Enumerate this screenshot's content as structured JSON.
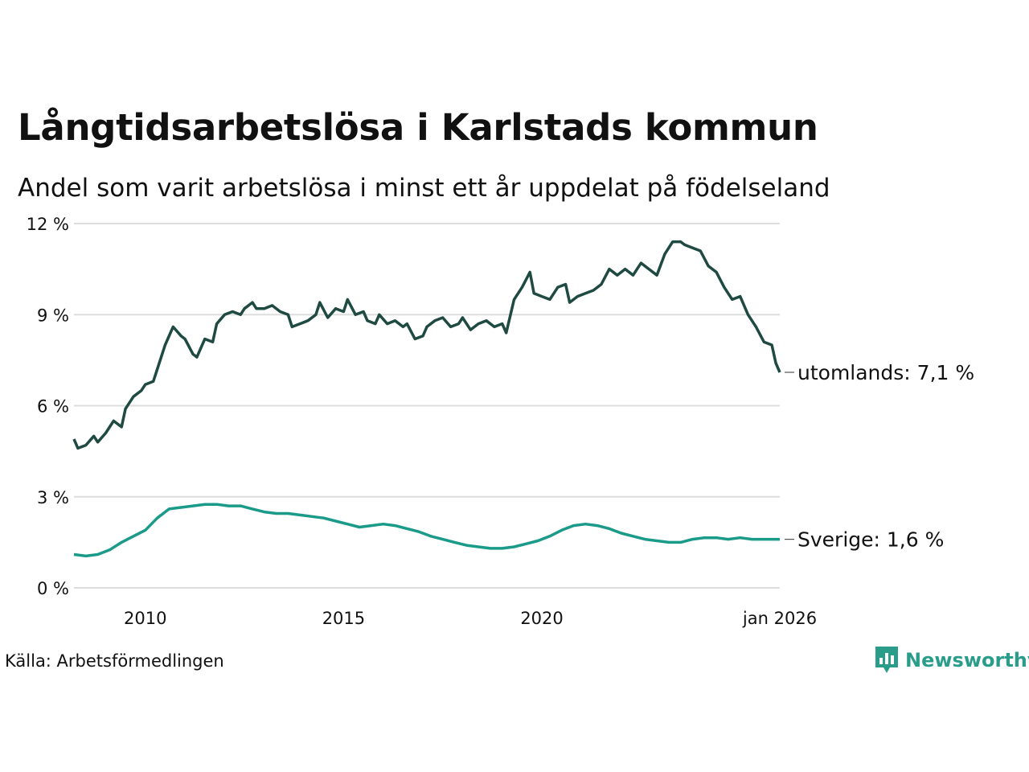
{
  "title": "Långtidsarbetslösa i Karlstads kommun",
  "subtitle": "Andel som varit arbetslösa i minst ett år uppdelat på födelseland",
  "source": "Källa: Arbetsförmedlingen",
  "logo": {
    "text": "Newsworthy",
    "icon": "bar-chart-icon",
    "color": "#2a9d8a"
  },
  "colors": {
    "utomlands": "#1f4a42",
    "sverige": "#1a9a88",
    "grid": "#dddddd"
  },
  "chart_data": {
    "type": "line",
    "title": "Långtidsarbetslösa i Karlstads kommun",
    "ylim": [
      0,
      12
    ],
    "xlim": [
      2008.2,
      2026.0
    ],
    "y_ticks": [
      {
        "value": 0,
        "label": "0 %"
      },
      {
        "value": 3,
        "label": "3 %"
      },
      {
        "value": 6,
        "label": "6 %"
      },
      {
        "value": 9,
        "label": "9 %"
      },
      {
        "value": 12,
        "label": "12 %"
      }
    ],
    "x_ticks": [
      {
        "value": 2010,
        "label": "2010"
      },
      {
        "value": 2015,
        "label": "2015"
      },
      {
        "value": 2020,
        "label": "2020"
      },
      {
        "value": 2026.0,
        "label": "jan 2026"
      }
    ],
    "grid": true,
    "series": [
      {
        "name": "utomlands",
        "end_label": "utomlands: 7,1 %",
        "color": "#1f4a42",
        "points": [
          [
            2008.2,
            4.9
          ],
          [
            2008.3,
            4.6
          ],
          [
            2008.5,
            4.7
          ],
          [
            2008.7,
            5.0
          ],
          [
            2008.8,
            4.8
          ],
          [
            2009.0,
            5.1
          ],
          [
            2009.2,
            5.5
          ],
          [
            2009.4,
            5.3
          ],
          [
            2009.5,
            5.9
          ],
          [
            2009.7,
            6.3
          ],
          [
            2009.9,
            6.5
          ],
          [
            2010.0,
            6.7
          ],
          [
            2010.2,
            6.8
          ],
          [
            2010.4,
            7.6
          ],
          [
            2010.5,
            8.0
          ],
          [
            2010.7,
            8.6
          ],
          [
            2010.9,
            8.3
          ],
          [
            2011.0,
            8.2
          ],
          [
            2011.2,
            7.7
          ],
          [
            2011.3,
            7.6
          ],
          [
            2011.5,
            8.2
          ],
          [
            2011.7,
            8.1
          ],
          [
            2011.8,
            8.7
          ],
          [
            2012.0,
            9.0
          ],
          [
            2012.2,
            9.1
          ],
          [
            2012.4,
            9.0
          ],
          [
            2012.5,
            9.2
          ],
          [
            2012.7,
            9.4
          ],
          [
            2012.8,
            9.2
          ],
          [
            2013.0,
            9.2
          ],
          [
            2013.2,
            9.3
          ],
          [
            2013.4,
            9.1
          ],
          [
            2013.6,
            9.0
          ],
          [
            2013.7,
            8.6
          ],
          [
            2013.9,
            8.7
          ],
          [
            2014.1,
            8.8
          ],
          [
            2014.3,
            9.0
          ],
          [
            2014.4,
            9.4
          ],
          [
            2014.6,
            8.9
          ],
          [
            2014.8,
            9.2
          ],
          [
            2015.0,
            9.1
          ],
          [
            2015.1,
            9.5
          ],
          [
            2015.3,
            9.0
          ],
          [
            2015.5,
            9.1
          ],
          [
            2015.6,
            8.8
          ],
          [
            2015.8,
            8.7
          ],
          [
            2015.9,
            9.0
          ],
          [
            2016.1,
            8.7
          ],
          [
            2016.3,
            8.8
          ],
          [
            2016.5,
            8.6
          ],
          [
            2016.6,
            8.7
          ],
          [
            2016.8,
            8.2
          ],
          [
            2017.0,
            8.3
          ],
          [
            2017.1,
            8.6
          ],
          [
            2017.3,
            8.8
          ],
          [
            2017.5,
            8.9
          ],
          [
            2017.7,
            8.6
          ],
          [
            2017.9,
            8.7
          ],
          [
            2018.0,
            8.9
          ],
          [
            2018.2,
            8.5
          ],
          [
            2018.4,
            8.7
          ],
          [
            2018.6,
            8.8
          ],
          [
            2018.8,
            8.6
          ],
          [
            2019.0,
            8.7
          ],
          [
            2019.1,
            8.4
          ],
          [
            2019.3,
            9.5
          ],
          [
            2019.5,
            9.9
          ],
          [
            2019.7,
            10.4
          ],
          [
            2019.8,
            9.7
          ],
          [
            2020.0,
            9.6
          ],
          [
            2020.2,
            9.5
          ],
          [
            2020.4,
            9.9
          ],
          [
            2020.6,
            10.0
          ],
          [
            2020.7,
            9.4
          ],
          [
            2020.9,
            9.6
          ],
          [
            2021.1,
            9.7
          ],
          [
            2021.3,
            9.8
          ],
          [
            2021.5,
            10.0
          ],
          [
            2021.7,
            10.5
          ],
          [
            2021.9,
            10.3
          ],
          [
            2022.1,
            10.5
          ],
          [
            2022.3,
            10.3
          ],
          [
            2022.5,
            10.7
          ],
          [
            2022.7,
            10.5
          ],
          [
            2022.9,
            10.3
          ],
          [
            2023.1,
            11.0
          ],
          [
            2023.3,
            11.4
          ],
          [
            2023.5,
            11.4
          ],
          [
            2023.6,
            11.3
          ],
          [
            2023.8,
            11.2
          ],
          [
            2024.0,
            11.1
          ],
          [
            2024.2,
            10.6
          ],
          [
            2024.4,
            10.4
          ],
          [
            2024.6,
            9.9
          ],
          [
            2024.8,
            9.5
          ],
          [
            2025.0,
            9.6
          ],
          [
            2025.2,
            9.0
          ],
          [
            2025.4,
            8.6
          ],
          [
            2025.6,
            8.1
          ],
          [
            2025.8,
            8.0
          ],
          [
            2025.9,
            7.4
          ],
          [
            2026.0,
            7.1
          ]
        ]
      },
      {
        "name": "Sverige",
        "end_label": "Sverige: 1,6 %",
        "color": "#1a9a88",
        "points": [
          [
            2008.2,
            1.1
          ],
          [
            2008.5,
            1.05
          ],
          [
            2008.8,
            1.1
          ],
          [
            2009.1,
            1.25
          ],
          [
            2009.4,
            1.5
          ],
          [
            2009.7,
            1.7
          ],
          [
            2010.0,
            1.9
          ],
          [
            2010.3,
            2.3
          ],
          [
            2010.6,
            2.6
          ],
          [
            2010.9,
            2.65
          ],
          [
            2011.2,
            2.7
          ],
          [
            2011.5,
            2.75
          ],
          [
            2011.8,
            2.75
          ],
          [
            2012.1,
            2.7
          ],
          [
            2012.4,
            2.7
          ],
          [
            2012.7,
            2.6
          ],
          [
            2013.0,
            2.5
          ],
          [
            2013.3,
            2.45
          ],
          [
            2013.6,
            2.45
          ],
          [
            2013.9,
            2.4
          ],
          [
            2014.2,
            2.35
          ],
          [
            2014.5,
            2.3
          ],
          [
            2014.8,
            2.2
          ],
          [
            2015.1,
            2.1
          ],
          [
            2015.4,
            2.0
          ],
          [
            2015.7,
            2.05
          ],
          [
            2016.0,
            2.1
          ],
          [
            2016.3,
            2.05
          ],
          [
            2016.6,
            1.95
          ],
          [
            2016.9,
            1.85
          ],
          [
            2017.2,
            1.7
          ],
          [
            2017.5,
            1.6
          ],
          [
            2017.8,
            1.5
          ],
          [
            2018.1,
            1.4
          ],
          [
            2018.4,
            1.35
          ],
          [
            2018.7,
            1.3
          ],
          [
            2019.0,
            1.3
          ],
          [
            2019.3,
            1.35
          ],
          [
            2019.6,
            1.45
          ],
          [
            2019.9,
            1.55
          ],
          [
            2020.2,
            1.7
          ],
          [
            2020.5,
            1.9
          ],
          [
            2020.8,
            2.05
          ],
          [
            2021.1,
            2.1
          ],
          [
            2021.4,
            2.05
          ],
          [
            2021.7,
            1.95
          ],
          [
            2022.0,
            1.8
          ],
          [
            2022.3,
            1.7
          ],
          [
            2022.6,
            1.6
          ],
          [
            2022.9,
            1.55
          ],
          [
            2023.2,
            1.5
          ],
          [
            2023.5,
            1.5
          ],
          [
            2023.8,
            1.6
          ],
          [
            2024.1,
            1.65
          ],
          [
            2024.4,
            1.65
          ],
          [
            2024.7,
            1.6
          ],
          [
            2025.0,
            1.65
          ],
          [
            2025.3,
            1.6
          ],
          [
            2025.6,
            1.6
          ],
          [
            2026.0,
            1.6
          ]
        ]
      }
    ]
  }
}
